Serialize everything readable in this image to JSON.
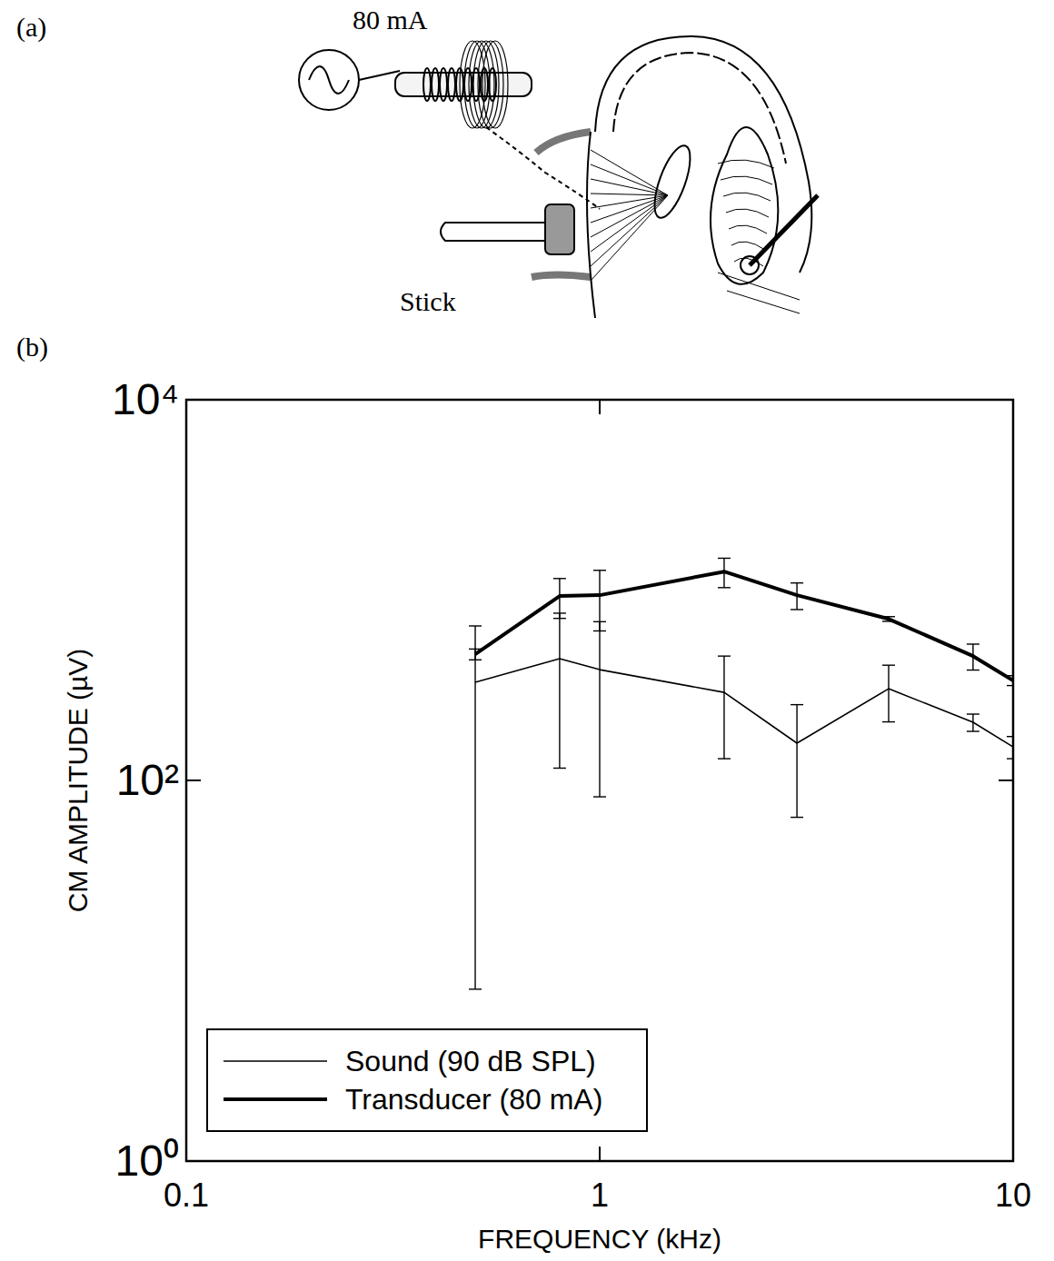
{
  "chart_data": {
    "type": "line",
    "x_label": "FREQUENCY (kHz)",
    "y_label": "CM AMPLITUDE (µV)",
    "x": [
      0.5,
      0.8,
      1,
      2,
      3,
      5,
      8,
      10
    ],
    "series": [
      {
        "name": "Sound (90 dB SPL)",
        "color": "#000000",
        "line_style": "thin",
        "marker": "none",
        "values": [
          328,
          436,
          382,
          290,
          157,
          303,
          202,
          150
        ],
        "errors": [
          320,
          320,
          300,
          160,
          93,
          100,
          21,
          20
        ]
      },
      {
        "name": "Transducer (80 mA)",
        "color": "#000000",
        "line_style": "thick",
        "marker": "none",
        "values": [
          460,
          930,
          940,
          1250,
          940,
          705,
          450,
          335
        ],
        "errors": [
          30,
          220,
          330,
          220,
          150,
          20,
          70,
          20
        ]
      }
    ],
    "xlim": [
      0.1,
      10
    ],
    "ylim": [
      1,
      10000
    ],
    "xticks": [
      0.1,
      1,
      10
    ],
    "yticks": [
      {
        "value": 1,
        "label": "10⁰"
      },
      {
        "value": 100,
        "label": "10²"
      },
      {
        "value": 10000,
        "label": "10⁴"
      }
    ],
    "log": true,
    "grid": false,
    "legend": "lower left"
  },
  "figure": {
    "panel_a_label": "(a)",
    "current_label": "80 mA",
    "stick_label": "Stick",
    "panel_b_label": "(b)"
  }
}
